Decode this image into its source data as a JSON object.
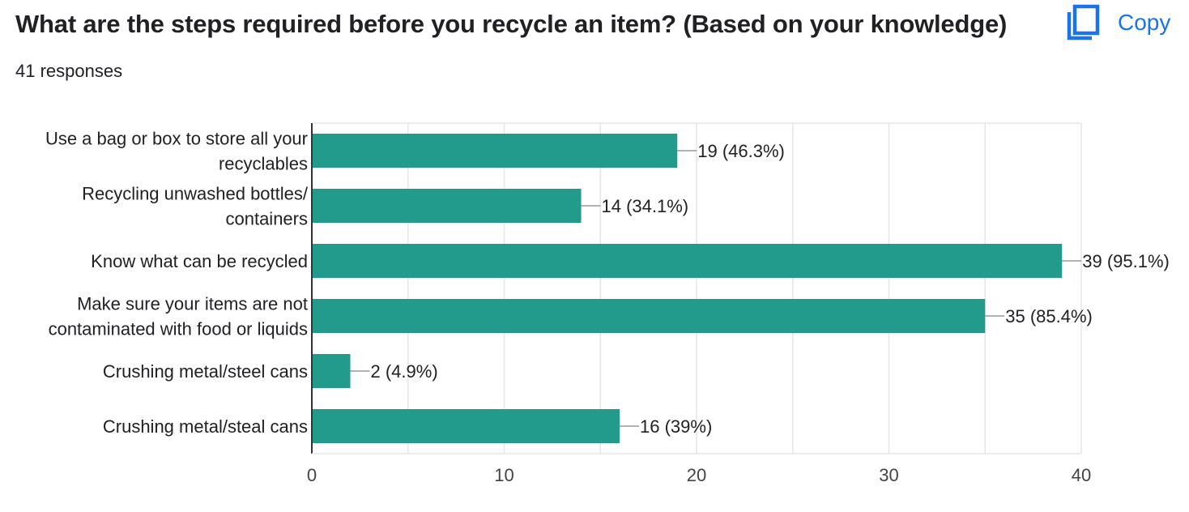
{
  "title": "What are the steps required before you recycle an item? (Based on your knowledge)",
  "responses": "41 responses",
  "copy_label": "Copy",
  "accent_color": "#229b8d",
  "icons": {
    "copy": "copy-icon"
  },
  "chart_data": {
    "type": "bar",
    "orientation": "horizontal",
    "categories": [
      [
        "Use a bag or box to store all your",
        "recyclables"
      ],
      [
        "Recycling unwashed bottles/",
        "containers"
      ],
      [
        "Know what can be recycled"
      ],
      [
        "Make sure your items are not",
        "contaminated with food or liquids"
      ],
      [
        "Crushing metal/steel cans"
      ],
      [
        "Crushing metal/steal cans"
      ]
    ],
    "values": [
      19,
      14,
      39,
      35,
      2,
      16
    ],
    "value_labels": [
      "19 (46.3%)",
      "14 (34.1%)",
      "39 (95.1%)",
      "35 (85.4%)",
      "2 (4.9%)",
      "16 (39%)"
    ],
    "xlim": [
      0,
      40
    ],
    "x_ticks": [
      "0",
      "10",
      "20",
      "30",
      "40"
    ],
    "grid": true,
    "bar_color": "#229b8d"
  }
}
